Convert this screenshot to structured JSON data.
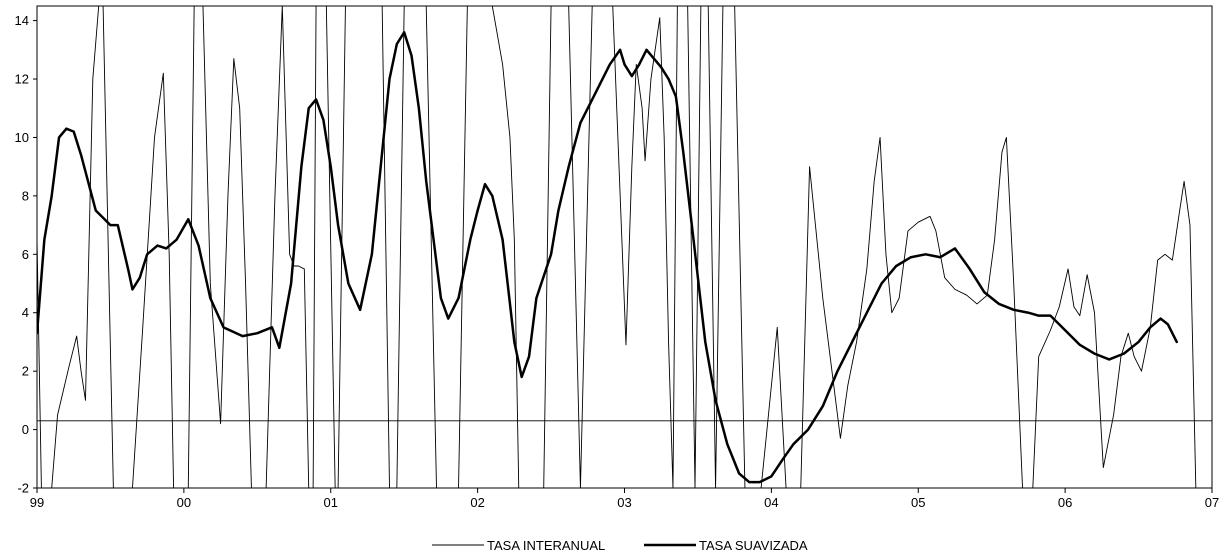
{
  "chart_data": {
    "type": "line",
    "title": "",
    "xlabel": "",
    "ylabel": "",
    "x_tick_labels": [
      "99",
      "00",
      "01",
      "02",
      "03",
      "04",
      "05",
      "06",
      "07"
    ],
    "y_tick_labels": [
      "-2",
      "0",
      "2",
      "4",
      "6",
      "8",
      "10",
      "12",
      "14"
    ],
    "xlim": [
      1999.0,
      2007.0
    ],
    "ylim": [
      -2,
      14.5
    ],
    "reference_line": 0.3,
    "grid": false,
    "legend_position": "bottom-center",
    "series": [
      {
        "name": "TASA INTERANUAL",
        "color": "#000000",
        "style": "thin",
        "points": [
          [
            1999.0,
            6.5
          ],
          [
            1999.03,
            -2
          ],
          [
            1999.1,
            -2
          ],
          [
            1999.14,
            0.5
          ],
          [
            1999.22,
            2.2
          ],
          [
            1999.27,
            3.2
          ],
          [
            1999.3,
            2.0
          ],
          [
            1999.33,
            1.0
          ],
          [
            1999.38,
            12.0
          ],
          [
            1999.42,
            14.5
          ],
          [
            1999.45,
            14.5
          ],
          [
            1999.52,
            -2
          ],
          [
            1999.65,
            -2
          ],
          [
            1999.72,
            3.5
          ],
          [
            1999.8,
            10.0
          ],
          [
            1999.86,
            12.2
          ],
          [
            1999.9,
            6.0
          ],
          [
            1999.93,
            -2
          ],
          [
            2000.03,
            -2
          ],
          [
            2000.07,
            14.5
          ],
          [
            2000.13,
            14.5
          ],
          [
            2000.18,
            5.0
          ],
          [
            2000.25,
            0.2
          ],
          [
            2000.3,
            8.0
          ],
          [
            2000.34,
            12.7
          ],
          [
            2000.38,
            11.0
          ],
          [
            2000.42,
            5.0
          ],
          [
            2000.46,
            -2
          ],
          [
            2000.56,
            -2
          ],
          [
            2000.62,
            8.0
          ],
          [
            2000.67,
            14.5
          ],
          [
            2000.72,
            6.0
          ],
          [
            2000.75,
            5.6
          ],
          [
            2000.78,
            5.6
          ],
          [
            2000.82,
            5.5
          ],
          [
            2000.85,
            -2
          ],
          [
            2000.88,
            -2
          ],
          [
            2000.9,
            14.5
          ],
          [
            2000.97,
            14.5
          ],
          [
            2001.03,
            -2
          ],
          [
            2001.05,
            -2
          ],
          [
            2001.1,
            14.5
          ],
          [
            2001.35,
            14.5
          ],
          [
            2001.4,
            -2
          ],
          [
            2001.45,
            -2
          ],
          [
            2001.5,
            14.5
          ],
          [
            2001.65,
            14.5
          ],
          [
            2001.72,
            -2
          ],
          [
            2001.87,
            -2
          ],
          [
            2001.93,
            14.5
          ],
          [
            2002.0,
            14.5
          ],
          [
            2002.06,
            14.5
          ],
          [
            2002.1,
            14.5
          ],
          [
            2002.17,
            12.5
          ],
          [
            2002.22,
            10.0
          ],
          [
            2002.25,
            6.5
          ],
          [
            2002.28,
            -2
          ],
          [
            2002.45,
            -2
          ],
          [
            2002.5,
            14.5
          ],
          [
            2002.62,
            14.5
          ],
          [
            2002.7,
            -2
          ],
          [
            2002.78,
            14.5
          ],
          [
            2002.92,
            14.5
          ],
          [
            2003.01,
            2.9
          ],
          [
            2003.05,
            9.0
          ],
          [
            2003.08,
            12.5
          ],
          [
            2003.12,
            11.0
          ],
          [
            2003.14,
            9.2
          ],
          [
            2003.18,
            12.0
          ],
          [
            2003.24,
            14.1
          ],
          [
            2003.27,
            10.0
          ],
          [
            2003.3,
            3.0
          ],
          [
            2003.33,
            -2
          ],
          [
            2003.36,
            14.5
          ],
          [
            2003.43,
            14.5
          ],
          [
            2003.48,
            -2
          ],
          [
            2003.52,
            14.5
          ],
          [
            2003.57,
            14.5
          ],
          [
            2003.62,
            -2
          ],
          [
            2003.67,
            14.5
          ],
          [
            2003.75,
            14.5
          ],
          [
            2003.82,
            -2
          ],
          [
            2003.93,
            -2
          ],
          [
            2004.0,
            1.5
          ],
          [
            2004.04,
            3.5
          ],
          [
            2004.1,
            -2
          ],
          [
            2004.2,
            -2
          ],
          [
            2004.26,
            9.0
          ],
          [
            2004.3,
            7.0
          ],
          [
            2004.35,
            4.5
          ],
          [
            2004.4,
            2.5
          ],
          [
            2004.47,
            -0.3
          ],
          [
            2004.52,
            1.5
          ],
          [
            2004.58,
            3.0
          ],
          [
            2004.65,
            5.5
          ],
          [
            2004.7,
            8.5
          ],
          [
            2004.74,
            10.0
          ],
          [
            2004.78,
            6.0
          ],
          [
            2004.82,
            4.0
          ],
          [
            2004.87,
            4.5
          ],
          [
            2004.93,
            6.8
          ],
          [
            2005.0,
            7.1
          ],
          [
            2005.08,
            7.3
          ],
          [
            2005.12,
            6.8
          ],
          [
            2005.18,
            5.2
          ],
          [
            2005.25,
            4.8
          ],
          [
            2005.33,
            4.6
          ],
          [
            2005.4,
            4.3
          ],
          [
            2005.47,
            4.6
          ],
          [
            2005.52,
            6.5
          ],
          [
            2005.57,
            9.5
          ],
          [
            2005.6,
            10.0
          ],
          [
            2005.65,
            5.0
          ],
          [
            2005.71,
            -2
          ],
          [
            2005.78,
            -2
          ],
          [
            2005.82,
            2.5
          ],
          [
            2005.9,
            3.4
          ],
          [
            2005.96,
            4.2
          ],
          [
            2006.02,
            5.5
          ],
          [
            2006.06,
            4.2
          ],
          [
            2006.1,
            3.9
          ],
          [
            2006.15,
            5.3
          ],
          [
            2006.2,
            4.0
          ],
          [
            2006.26,
            -1.3
          ],
          [
            2006.33,
            0.5
          ],
          [
            2006.38,
            2.5
          ],
          [
            2006.43,
            3.3
          ],
          [
            2006.47,
            2.5
          ],
          [
            2006.52,
            2.0
          ],
          [
            2006.58,
            3.5
          ],
          [
            2006.63,
            5.8
          ],
          [
            2006.68,
            6.0
          ],
          [
            2006.73,
            5.8
          ],
          [
            2006.78,
            7.5
          ],
          [
            2006.81,
            8.5
          ],
          [
            2006.85,
            7.0
          ],
          [
            2006.89,
            -2
          ]
        ]
      },
      {
        "name": "TASA SUAVIZADA",
        "color": "#000000",
        "style": "thick",
        "points": [
          [
            1999.0,
            3.3
          ],
          [
            1999.05,
            6.5
          ],
          [
            1999.1,
            8.0
          ],
          [
            1999.15,
            10.0
          ],
          [
            1999.2,
            10.3
          ],
          [
            1999.25,
            10.2
          ],
          [
            1999.3,
            9.4
          ],
          [
            1999.4,
            7.5
          ],
          [
            1999.5,
            7.0
          ],
          [
            1999.55,
            7.0
          ],
          [
            1999.62,
            5.5
          ],
          [
            1999.65,
            4.8
          ],
          [
            1999.7,
            5.2
          ],
          [
            1999.75,
            6.0
          ],
          [
            1999.82,
            6.3
          ],
          [
            1999.88,
            6.2
          ],
          [
            1999.95,
            6.5
          ],
          [
            2000.03,
            7.2
          ],
          [
            2000.1,
            6.3
          ],
          [
            2000.18,
            4.5
          ],
          [
            2000.27,
            3.5
          ],
          [
            2000.4,
            3.2
          ],
          [
            2000.5,
            3.3
          ],
          [
            2000.6,
            3.5
          ],
          [
            2000.65,
            2.8
          ],
          [
            2000.73,
            5.0
          ],
          [
            2000.8,
            9.0
          ],
          [
            2000.85,
            11.0
          ],
          [
            2000.9,
            11.3
          ],
          [
            2000.95,
            10.6
          ],
          [
            2001.0,
            9.0
          ],
          [
            2001.05,
            7.0
          ],
          [
            2001.12,
            5.0
          ],
          [
            2001.2,
            4.1
          ],
          [
            2001.28,
            6.0
          ],
          [
            2001.35,
            9.5
          ],
          [
            2001.4,
            12.0
          ],
          [
            2001.45,
            13.2
          ],
          [
            2001.5,
            13.6
          ],
          [
            2001.55,
            12.8
          ],
          [
            2001.6,
            11.0
          ],
          [
            2001.65,
            8.5
          ],
          [
            2001.75,
            4.5
          ],
          [
            2001.8,
            3.8
          ],
          [
            2001.87,
            4.5
          ],
          [
            2001.95,
            6.5
          ],
          [
            2002.0,
            7.5
          ],
          [
            2002.05,
            8.4
          ],
          [
            2002.1,
            8.0
          ],
          [
            2002.17,
            6.5
          ],
          [
            2002.25,
            3.0
          ],
          [
            2002.3,
            1.8
          ],
          [
            2002.35,
            2.5
          ],
          [
            2002.4,
            4.5
          ],
          [
            2002.5,
            6.0
          ],
          [
            2002.55,
            7.5
          ],
          [
            2002.62,
            9.0
          ],
          [
            2002.7,
            10.5
          ],
          [
            2002.8,
            11.5
          ],
          [
            2002.9,
            12.5
          ],
          [
            2002.97,
            13.0
          ],
          [
            2003.0,
            12.5
          ],
          [
            2003.05,
            12.1
          ],
          [
            2003.1,
            12.5
          ],
          [
            2003.15,
            13.0
          ],
          [
            2003.2,
            12.7
          ],
          [
            2003.25,
            12.4
          ],
          [
            2003.3,
            12.0
          ],
          [
            2003.35,
            11.4
          ],
          [
            2003.4,
            9.5
          ],
          [
            2003.47,
            6.5
          ],
          [
            2003.55,
            3.0
          ],
          [
            2003.62,
            1.0
          ],
          [
            2003.7,
            -0.5
          ],
          [
            2003.78,
            -1.5
          ],
          [
            2003.85,
            -1.8
          ],
          [
            2003.92,
            -1.8
          ],
          [
            2004.0,
            -1.6
          ],
          [
            2004.08,
            -1.0
          ],
          [
            2004.15,
            -0.5
          ],
          [
            2004.25,
            0.0
          ],
          [
            2004.35,
            0.8
          ],
          [
            2004.45,
            2.0
          ],
          [
            2004.55,
            3.0
          ],
          [
            2004.65,
            4.0
          ],
          [
            2004.75,
            5.0
          ],
          [
            2004.85,
            5.6
          ],
          [
            2004.95,
            5.9
          ],
          [
            2005.05,
            6.0
          ],
          [
            2005.15,
            5.9
          ],
          [
            2005.25,
            6.2
          ],
          [
            2005.35,
            5.5
          ],
          [
            2005.45,
            4.7
          ],
          [
            2005.55,
            4.3
          ],
          [
            2005.65,
            4.1
          ],
          [
            2005.75,
            4.0
          ],
          [
            2005.82,
            3.9
          ],
          [
            2005.9,
            3.9
          ],
          [
            2006.0,
            3.4
          ],
          [
            2006.1,
            2.9
          ],
          [
            2006.2,
            2.6
          ],
          [
            2006.3,
            2.4
          ],
          [
            2006.4,
            2.6
          ],
          [
            2006.5,
            3.0
          ],
          [
            2006.58,
            3.5
          ],
          [
            2006.65,
            3.8
          ],
          [
            2006.7,
            3.6
          ],
          [
            2006.76,
            3.0
          ]
        ]
      }
    ]
  }
}
